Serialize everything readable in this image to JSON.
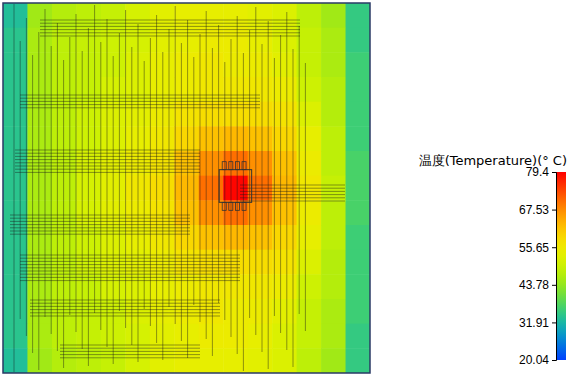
{
  "chart_data": {
    "type": "heatmap",
    "tick_labels": false,
    "cells": [
      [
        33,
        45,
        47,
        48,
        49,
        51,
        53,
        54,
        54,
        54,
        53,
        52,
        48,
        45,
        35
      ],
      [
        34,
        46,
        48,
        49,
        50,
        51,
        53,
        54,
        55,
        55,
        54,
        52,
        49,
        46,
        35
      ],
      [
        34,
        46,
        48,
        49,
        50,
        52,
        54,
        55,
        56,
        55,
        55,
        53,
        49,
        46,
        36
      ],
      [
        34,
        46,
        48,
        49,
        51,
        52,
        54,
        55,
        56,
        56,
        56,
        55,
        50,
        47,
        36
      ],
      [
        34,
        46,
        48,
        50,
        52,
        53,
        55,
        57,
        58,
        58,
        58,
        57,
        52,
        47,
        36
      ],
      [
        34,
        46,
        48,
        50,
        52,
        54,
        56,
        59,
        62,
        63,
        62,
        59,
        54,
        48,
        36
      ],
      [
        34,
        46,
        48,
        51,
        53,
        55,
        57,
        62,
        67,
        70,
        67,
        62,
        55,
        48,
        37
      ],
      [
        34,
        46,
        48,
        51,
        53,
        56,
        58,
        63,
        70,
        79,
        70,
        63,
        56,
        49,
        37
      ],
      [
        34,
        46,
        48,
        51,
        53,
        55,
        57,
        62,
        67,
        70,
        67,
        62,
        55,
        48,
        37
      ],
      [
        34,
        46,
        48,
        50,
        52,
        54,
        56,
        59,
        62,
        63,
        62,
        59,
        54,
        48,
        36
      ],
      [
        34,
        46,
        48,
        50,
        52,
        53,
        55,
        57,
        58,
        58,
        58,
        57,
        52,
        47,
        36
      ],
      [
        34,
        46,
        48,
        49,
        51,
        52,
        54,
        55,
        56,
        56,
        56,
        55,
        50,
        47,
        36
      ],
      [
        34,
        46,
        48,
        49,
        50,
        52,
        54,
        55,
        56,
        55,
        55,
        53,
        49,
        46,
        36
      ],
      [
        34,
        46,
        48,
        49,
        50,
        51,
        53,
        54,
        55,
        55,
        54,
        52,
        49,
        46,
        35
      ],
      [
        33,
        45,
        47,
        48,
        49,
        51,
        53,
        54,
        54,
        54,
        53,
        52,
        48,
        45,
        35
      ]
    ],
    "colorbar": {
      "title": "温度(Temperature)(° C)",
      "range": [
        20.04,
        79.4
      ],
      "ticks": [
        20.04,
        31.91,
        43.78,
        55.65,
        67.53,
        79.4
      ]
    }
  }
}
